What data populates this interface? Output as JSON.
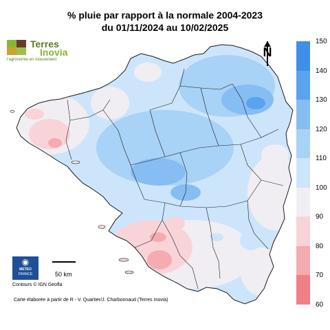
{
  "title_line1": "% pluie par rapport à la normale 2004-2023",
  "title_line2": "du 01/11/2024 au 10/02/2025",
  "logo": {
    "name_line1": "Terres",
    "name_line2": "Inovia",
    "tagline": "l'agronomie en mouvement"
  },
  "north_label": "N",
  "legend": {
    "ticks": [
      "150",
      "140",
      "130",
      "120",
      "110",
      "100",
      "90",
      "80",
      "70",
      "60"
    ],
    "bands": [
      {
        "from": 140,
        "to": 150,
        "color": "#3f8fe8"
      },
      {
        "from": 130,
        "to": 140,
        "color": "#5aa3ee"
      },
      {
        "from": 120,
        "to": 130,
        "color": "#86bdf2"
      },
      {
        "from": 110,
        "to": 120,
        "color": "#a8d2f6"
      },
      {
        "from": 100,
        "to": 110,
        "color": "#cce5fa"
      },
      {
        "from": 90,
        "to": 100,
        "color": "#f0eef2"
      },
      {
        "from": 80,
        "to": 90,
        "color": "#f8d4d8"
      },
      {
        "from": 70,
        "to": 80,
        "color": "#f4abb2"
      },
      {
        "from": 60,
        "to": 70,
        "color": "#f08088"
      }
    ]
  },
  "meteo_logo": {
    "line1": "METEO",
    "line2": "FRANCE"
  },
  "scale_label": "50 km",
  "credits": "Contours © IGN Geofla",
  "source": "Carte élaborée à partir de R - V. Quartier/J. Charbonnaud (Terres Inovia)"
}
